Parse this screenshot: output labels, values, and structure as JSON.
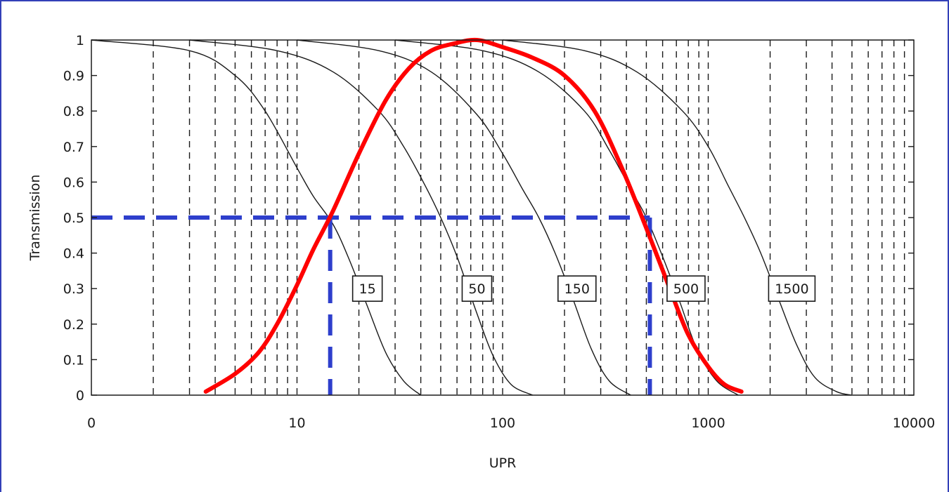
{
  "chart_data": {
    "type": "line",
    "xlabel": "UPR",
    "ylabel": "Transmission",
    "x_scale": "log",
    "xlim": [
      1,
      10000
    ],
    "ylim": [
      0,
      1
    ],
    "x_tick_labels": [
      "0",
      "10",
      "100",
      "1000",
      "10000"
    ],
    "x_tick_values": [
      1,
      10,
      100,
      1000,
      10000
    ],
    "y_ticks": [
      0,
      0.1,
      0.2,
      0.3,
      0.4,
      0.5,
      0.6,
      0.7,
      0.8,
      0.9,
      1
    ],
    "y_tick_labels": [
      "0",
      "0.1",
      "0.2",
      "0.3",
      "0.4",
      "0.5",
      "0.6",
      "0.7",
      "0.8",
      "0.9",
      "1"
    ],
    "grid": "vertical dashed at log minor ticks",
    "series": [
      {
        "name": "15",
        "color": "#1a1a1a",
        "x": [
          1,
          3,
          5,
          7,
          10,
          12,
          15,
          18,
          22,
          27,
          33,
          40
        ],
        "y": [
          1.0,
          0.97,
          0.9,
          0.8,
          0.64,
          0.56,
          0.48,
          0.38,
          0.25,
          0.12,
          0.04,
          0.0
        ]
      },
      {
        "name": "50",
        "color": "#1a1a1a",
        "x": [
          3,
          8,
          15,
          25,
          33,
          42,
          50,
          60,
          75,
          90,
          110,
          140
        ],
        "y": [
          1.0,
          0.97,
          0.91,
          0.8,
          0.7,
          0.59,
          0.5,
          0.39,
          0.23,
          0.11,
          0.03,
          0.0
        ]
      },
      {
        "name": "150",
        "color": "#1a1a1a",
        "x": [
          10,
          25,
          45,
          75,
          100,
          125,
          150,
          180,
          220,
          270,
          330,
          420
        ],
        "y": [
          1.0,
          0.97,
          0.91,
          0.79,
          0.68,
          0.58,
          0.5,
          0.4,
          0.27,
          0.13,
          0.04,
          0.0
        ]
      },
      {
        "name": "500",
        "color": "#1a1a1a",
        "x": [
          30,
          80,
          150,
          250,
          330,
          420,
          500,
          600,
          730,
          880,
          1100,
          1400
        ],
        "y": [
          1.0,
          0.97,
          0.91,
          0.8,
          0.69,
          0.58,
          0.5,
          0.39,
          0.26,
          0.13,
          0.04,
          0.0
        ]
      },
      {
        "name": "1500",
        "color": "#1a1a1a",
        "x": [
          100,
          250,
          450,
          750,
          1000,
          1250,
          1500,
          1800,
          2200,
          2700,
          3300,
          4200,
          5000
        ],
        "y": [
          1.0,
          0.97,
          0.91,
          0.8,
          0.7,
          0.59,
          0.5,
          0.4,
          0.27,
          0.14,
          0.05,
          0.01,
          0.0
        ]
      },
      {
        "name": "",
        "color": "#ff0000",
        "x": [
          3.6,
          5,
          6.5,
          8,
          10,
          12,
          15,
          20,
          27,
          35,
          45,
          58,
          75,
          100,
          140,
          200,
          280,
          380,
          500,
          650,
          800,
          1000,
          1200,
          1450
        ],
        "y": [
          0.01,
          0.06,
          0.12,
          0.2,
          0.31,
          0.41,
          0.52,
          0.68,
          0.83,
          0.92,
          0.97,
          0.99,
          1.0,
          0.98,
          0.95,
          0.9,
          0.8,
          0.64,
          0.47,
          0.3,
          0.17,
          0.08,
          0.03,
          0.01
        ]
      }
    ],
    "reference_lines": {
      "color": "#2e3fcc",
      "y_level": 0.5,
      "x_left": 14.5,
      "x_right": 520
    },
    "curve_labels": [
      {
        "text": "15",
        "x": 22,
        "y": 0.3
      },
      {
        "text": "50",
        "x": 75,
        "y": 0.3
      },
      {
        "text": "150",
        "x": 230,
        "y": 0.3
      },
      {
        "text": "500",
        "x": 780,
        "y": 0.3
      },
      {
        "text": "1500",
        "x": 2550,
        "y": 0.3
      }
    ]
  }
}
